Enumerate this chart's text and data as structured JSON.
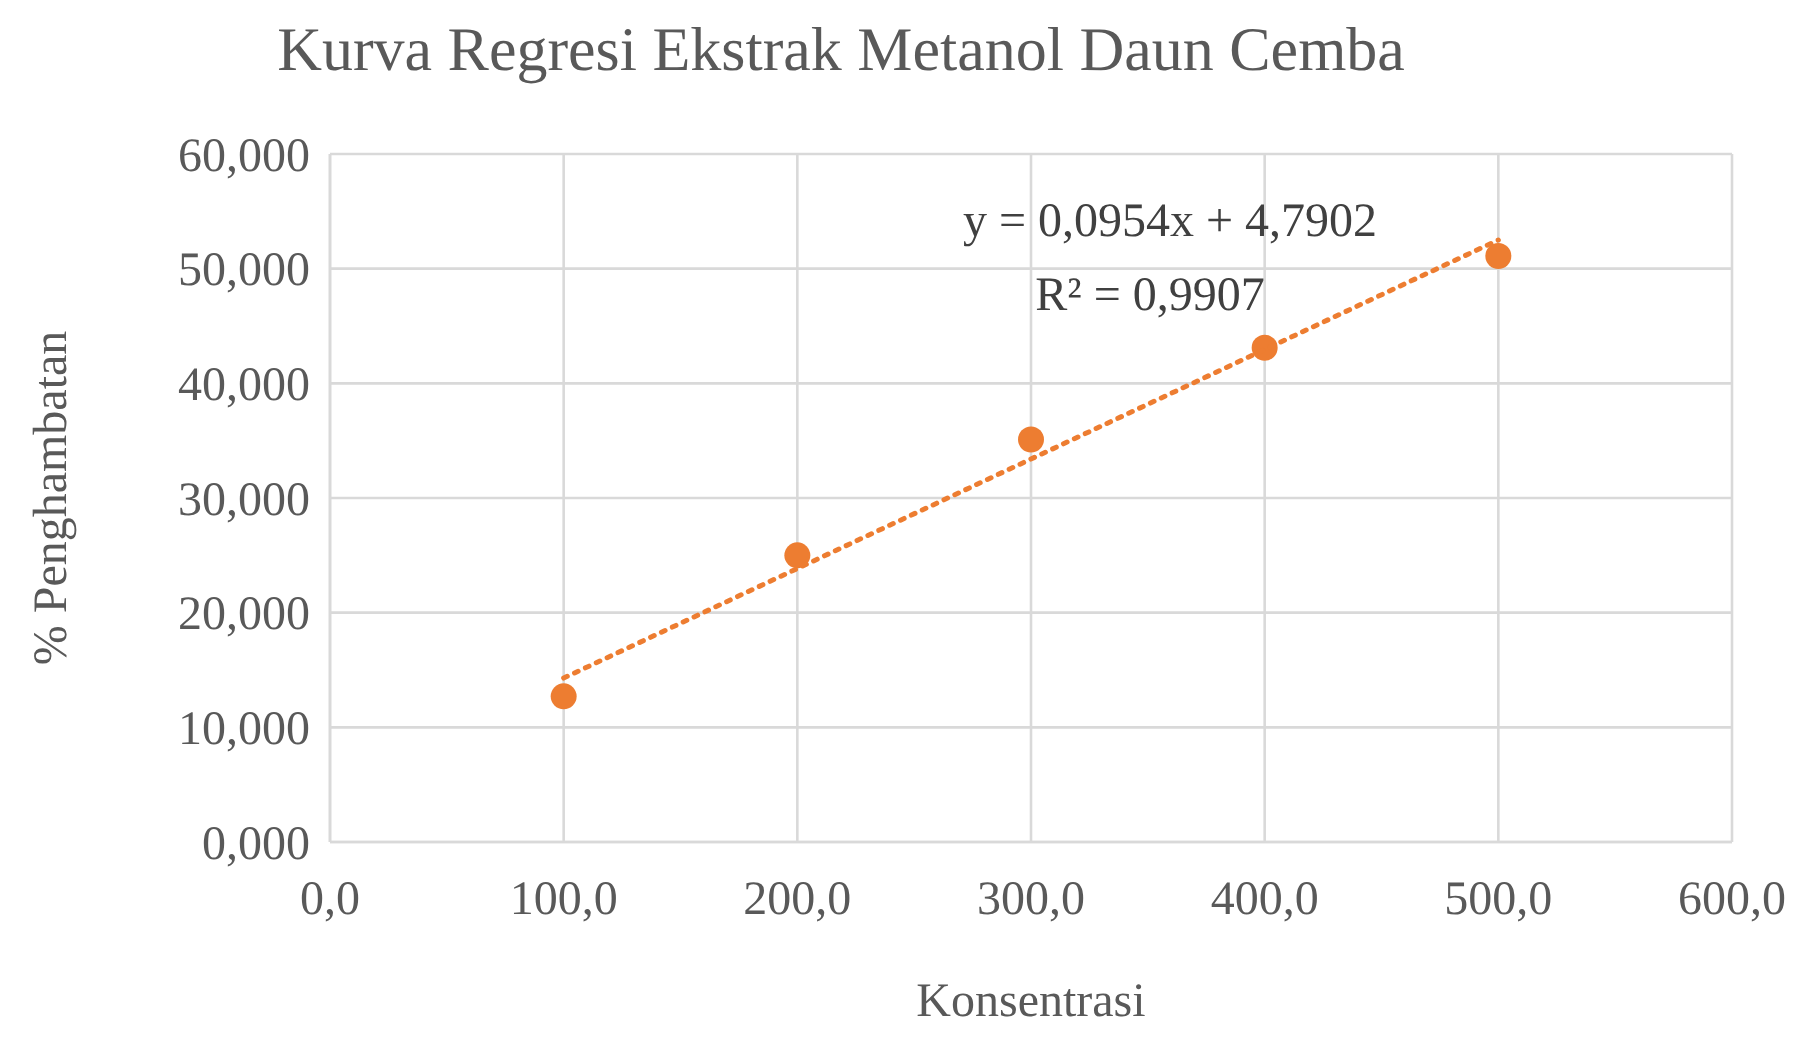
{
  "chart_data": {
    "type": "scatter",
    "title": "Kurva Regresi Ekstrak Metanol Daun Cemba",
    "xlabel": "Konsentrasi",
    "ylabel": "% Penghambatan",
    "x": [
      100,
      200,
      300,
      400,
      500
    ],
    "series": [
      {
        "color": "#ed7d31",
        "values": [
          12.7,
          25.0,
          35.1,
          43.1,
          51.1
        ],
        "marker": "circle"
      },
      {
        "type": "line",
        "color": "#ed7d31",
        "x": [
          100,
          500
        ],
        "values": [
          14.3,
          52.5
        ],
        "line_style": "dotted",
        "marker": "none"
      }
    ],
    "xlim": [
      0,
      600
    ],
    "xticks": [
      {
        "value": 0,
        "label": "0,0"
      },
      {
        "value": 100,
        "label": "100,0"
      },
      {
        "value": 200,
        "label": "200,0"
      },
      {
        "value": 300,
        "label": "300,0"
      },
      {
        "value": 400,
        "label": "400,0"
      },
      {
        "value": 500,
        "label": "500,0"
      },
      {
        "value": 600,
        "label": "600,0"
      }
    ],
    "ylim": [
      0,
      60
    ],
    "yticks": [
      {
        "value": 0,
        "label": "0,000"
      },
      {
        "value": 10,
        "label": "10,000"
      },
      {
        "value": 20,
        "label": "20,000"
      },
      {
        "value": 30,
        "label": "30,000"
      },
      {
        "value": 40,
        "label": "40,000"
      },
      {
        "value": 50,
        "label": "50,000"
      },
      {
        "value": 60,
        "label": "60,000"
      }
    ],
    "grid": true,
    "annotations": [
      "y = 0,0954x + 4,7902",
      "R² = 0,9907"
    ]
  }
}
